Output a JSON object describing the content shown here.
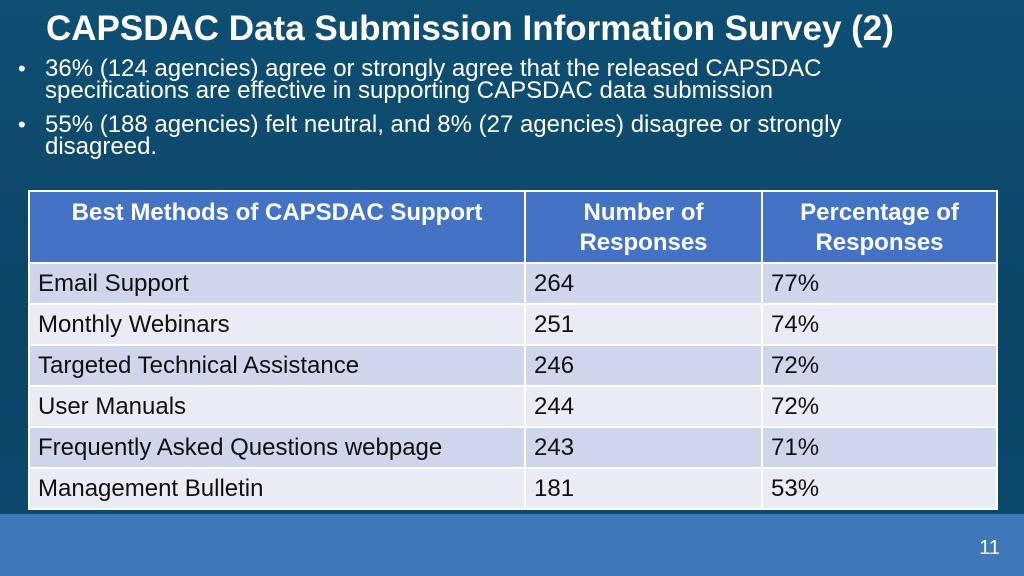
{
  "title": "CAPSDAC Data Submission Information Survey (2)",
  "bullets": [
    "36% (124 agencies) agree or strongly agree that the released CAPSDAC specifications are effective in supporting CAPSDAC data submission",
    "55% (188 agencies) felt neutral, and 8% (27 agencies) disagree or strongly disagreed."
  ],
  "table": {
    "headers": [
      "Best Methods of CAPSDAC Support",
      "Number of Responses",
      "Percentage of Responses"
    ],
    "rows": [
      [
        "Email Support",
        "264",
        "77%"
      ],
      [
        "Monthly Webinars",
        "251",
        "74%"
      ],
      [
        "Targeted Technical Assistance",
        "246",
        "72%"
      ],
      [
        "User Manuals",
        "244",
        "72%"
      ],
      [
        "Frequently Asked Questions webpage",
        "243",
        "71%"
      ],
      [
        "Management Bulletin",
        "181",
        "53%"
      ]
    ]
  },
  "page_number": "11"
}
